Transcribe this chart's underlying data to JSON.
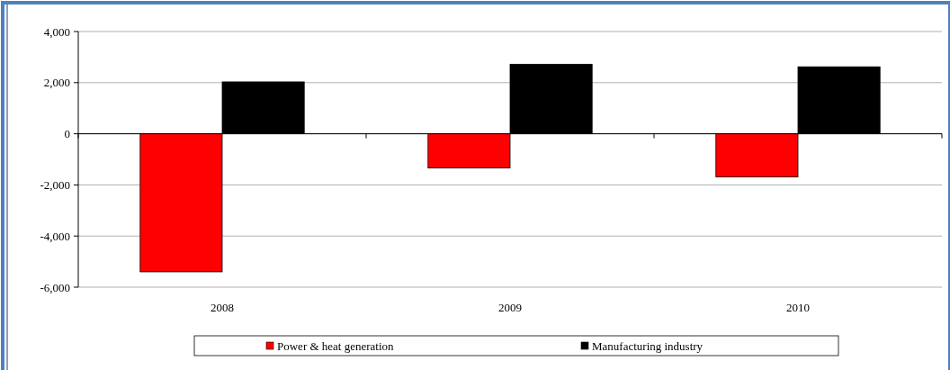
{
  "chart_data": {
    "type": "bar",
    "categories": [
      "2008",
      "2009",
      "2010"
    ],
    "series": [
      {
        "name": "Power & heat generation",
        "color": "#ff0000",
        "values": [
          -5400,
          -1340,
          -1690
        ]
      },
      {
        "name": "Manufacturing industry",
        "color": "#000000",
        "values": [
          2030,
          2720,
          2620
        ]
      }
    ],
    "ylim": [
      -6000,
      4000
    ],
    "yticks": [
      {
        "value": -6000,
        "label": "-6,000"
      },
      {
        "value": -4000,
        "label": "-4,000"
      },
      {
        "value": -2000,
        "label": "-2,000"
      },
      0,
      {
        "value": 2000,
        "label": "2,000"
      },
      {
        "value": 4000,
        "label": "4,000"
      }
    ],
    "grid": "y",
    "legend": "bottom"
  }
}
